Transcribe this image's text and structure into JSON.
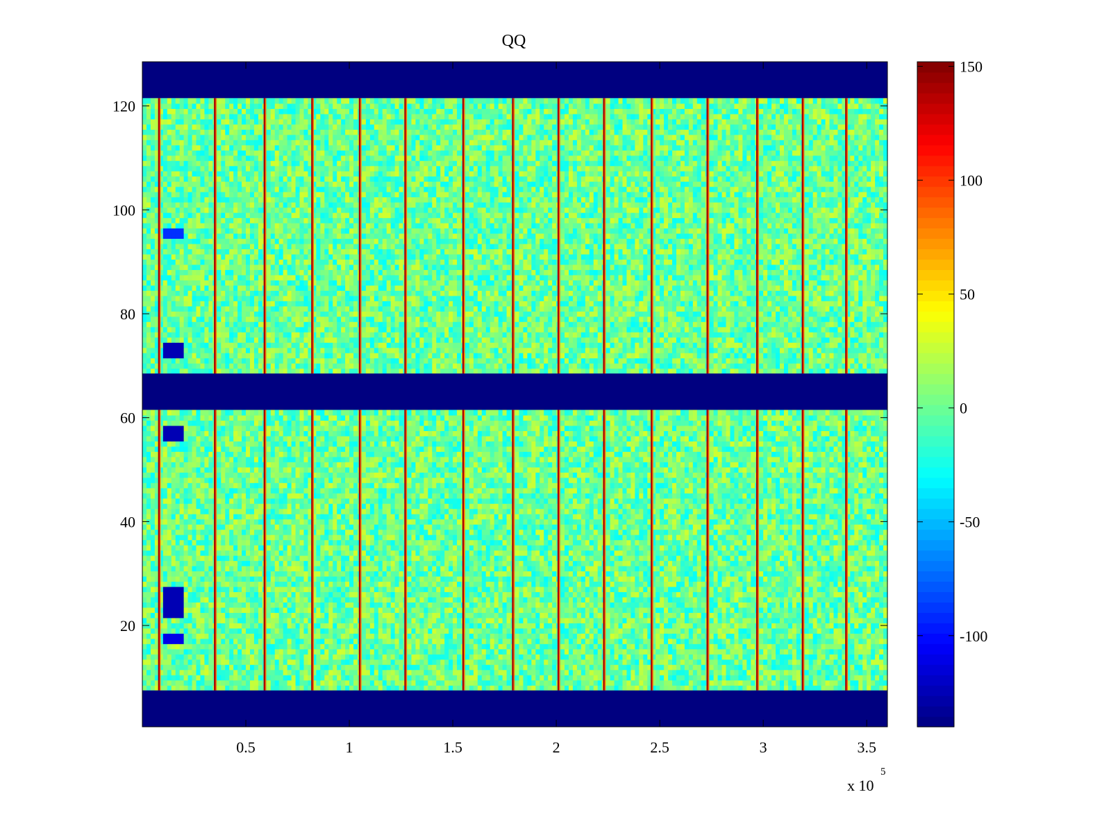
{
  "chart_data": {
    "type": "heatmap",
    "title": "QQ",
    "xlabel": "",
    "ylabel": "",
    "x_exponent_label": "x 10",
    "x_exponent_power": "5",
    "xlim": [
      0,
      3.6
    ],
    "ylim": [
      0.5,
      128.5
    ],
    "x_ticks": [
      {
        "value": 0.5,
        "label": "0.5"
      },
      {
        "value": 1,
        "label": "1"
      },
      {
        "value": 1.5,
        "label": "1.5"
      },
      {
        "value": 2,
        "label": "2"
      },
      {
        "value": 2.5,
        "label": "2.5"
      },
      {
        "value": 3,
        "label": "3"
      },
      {
        "value": 3.5,
        "label": "3.5"
      }
    ],
    "y_ticks": [
      {
        "value": 20,
        "label": "20"
      },
      {
        "value": 40,
        "label": "40"
      },
      {
        "value": 60,
        "label": "60"
      },
      {
        "value": 80,
        "label": "80"
      },
      {
        "value": 100,
        "label": "100"
      },
      {
        "value": 120,
        "label": "120"
      }
    ],
    "colorbar": {
      "colormap": "jet",
      "clim": [
        -140,
        152
      ],
      "ticks": [
        {
          "value": 150,
          "label": "150"
        },
        {
          "value": 100,
          "label": "100"
        },
        {
          "value": 50,
          "label": "50"
        },
        {
          "value": 0,
          "label": "0"
        },
        {
          "value": -50,
          "label": "-50"
        },
        {
          "value": -100,
          "label": "-100"
        }
      ]
    },
    "masked_row_bands": [
      {
        "rows": [
          1,
          7
        ],
        "value": -140
      },
      {
        "rows": [
          62,
          68
        ],
        "value": -140
      },
      {
        "rows": [
          122,
          128
        ],
        "value": -140
      }
    ],
    "background_value_range": [
      -30,
      30
    ],
    "high_value_columns_x": [
      0.08,
      0.35,
      0.59,
      0.82,
      1.05,
      1.27,
      1.55,
      1.79,
      2.01,
      2.23,
      2.46,
      2.73,
      2.97,
      3.19,
      3.4
    ],
    "high_value_column_value": 140,
    "low_value_blocks": [
      {
        "x_range": [
          0.1,
          0.2
        ],
        "rows": [
          72,
          74
        ],
        "value": -125
      },
      {
        "x_range": [
          0.1,
          0.2
        ],
        "rows": [
          56,
          58
        ],
        "value": -125
      },
      {
        "x_range": [
          0.1,
          0.2
        ],
        "rows": [
          22,
          27
        ],
        "value": -125
      },
      {
        "x_range": [
          0.1,
          0.2
        ],
        "rows": [
          17,
          18
        ],
        "value": -110
      },
      {
        "x_range": [
          0.1,
          0.2
        ],
        "rows": [
          95,
          96
        ],
        "value": -90
      }
    ],
    "grid": false,
    "legend": "none"
  },
  "colors": {
    "axes": "#000000",
    "masked_band": "#00008f",
    "background": "#ffffff"
  }
}
